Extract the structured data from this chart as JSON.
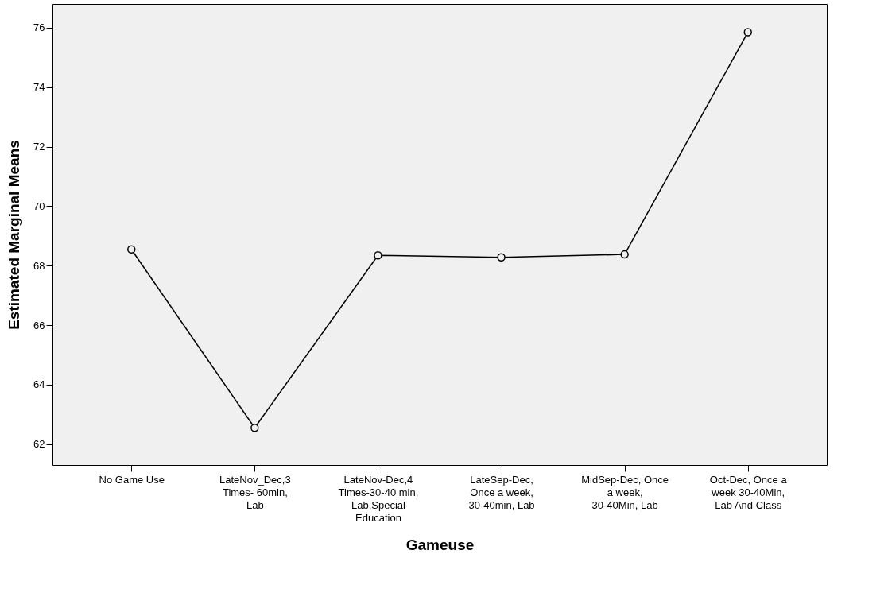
{
  "chart_data": {
    "type": "line",
    "xlabel": "Gameuse",
    "ylabel": "Estimated Marginal Means",
    "categories": [
      "No Game Use",
      "LateNov_Dec,3 Times- 60min, Lab",
      "LateNov-Dec,4 Times-30-40 min, Lab,Special Education",
      "LateSep-Dec, Once a week, 30-40min, Lab",
      "MidSep-Dec, Once a week, 30-40Min, Lab",
      "Oct-Dec, Once a week 30-40Min, Lab And Class"
    ],
    "series": [
      {
        "color": "#000000",
        "values": [
          68.55,
          62.55,
          68.35,
          68.28,
          68.38,
          75.85
        ]
      }
    ],
    "ylim": [
      61.3,
      76.8
    ],
    "yticks": [
      62,
      64,
      66,
      68,
      70,
      72,
      74,
      76
    ],
    "grid": false,
    "marker": "circle",
    "line_style": "solid"
  }
}
